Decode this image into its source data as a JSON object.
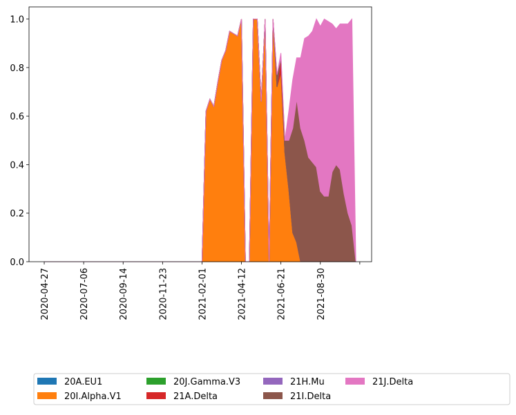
{
  "chart_data": {
    "type": "stacked_area",
    "x": [
      "2020-04-27",
      "2020-05-04",
      "2020-05-11",
      "2020-05-18",
      "2020-05-25",
      "2020-06-01",
      "2020-06-08",
      "2020-06-15",
      "2020-06-22",
      "2020-06-29",
      "2020-07-06",
      "2020-07-13",
      "2020-07-20",
      "2020-07-27",
      "2020-08-03",
      "2020-08-10",
      "2020-08-17",
      "2020-08-24",
      "2020-08-31",
      "2020-09-07",
      "2020-09-14",
      "2020-09-21",
      "2020-09-28",
      "2020-10-05",
      "2020-10-12",
      "2020-10-19",
      "2020-10-26",
      "2020-11-02",
      "2020-11-09",
      "2020-11-16",
      "2020-11-23",
      "2020-11-30",
      "2020-12-07",
      "2020-12-14",
      "2020-12-21",
      "2020-12-28",
      "2021-01-04",
      "2021-01-11",
      "2021-01-18",
      "2021-01-25",
      "2021-02-01",
      "2021-02-08",
      "2021-02-15",
      "2021-02-22",
      "2021-03-01",
      "2021-03-08",
      "2021-03-15",
      "2021-03-22",
      "2021-03-29",
      "2021-04-05",
      "2021-04-12",
      "2021-04-19",
      "2021-04-26",
      "2021-05-03",
      "2021-05-10",
      "2021-05-17",
      "2021-05-24",
      "2021-05-31",
      "2021-06-07",
      "2021-06-14",
      "2021-06-21",
      "2021-06-28",
      "2021-07-05",
      "2021-07-12",
      "2021-07-19",
      "2021-07-26",
      "2021-08-02",
      "2021-08-09",
      "2021-08-16",
      "2021-08-23",
      "2021-08-30",
      "2021-09-06",
      "2021-09-13",
      "2021-09-20",
      "2021-09-27",
      "2021-10-04",
      "2021-10-11",
      "2021-10-18",
      "2021-10-25",
      "2021-11-01"
    ],
    "series": [
      {
        "name": "20A.EU1",
        "color": "#1f77b4",
        "values": [
          0,
          0,
          0,
          0,
          0,
          0,
          0,
          0,
          0,
          0,
          0,
          0,
          0,
          0,
          0,
          0,
          0,
          0,
          0,
          0,
          0,
          0,
          0,
          0,
          0,
          0,
          0,
          0,
          0,
          0,
          0,
          0,
          0,
          0,
          0,
          0,
          0,
          0,
          0,
          0,
          0,
          0,
          0,
          0,
          0,
          0,
          0,
          0,
          0,
          0,
          0,
          0,
          0,
          0,
          0,
          0,
          0,
          0,
          0,
          0,
          0,
          0,
          0,
          0,
          0,
          0,
          0,
          0,
          0,
          0,
          0,
          0,
          0,
          0,
          0,
          0,
          0,
          0,
          0,
          0
        ]
      },
      {
        "name": "20I.Alpha.V1",
        "color": "#ff7f0e",
        "values": [
          0,
          0,
          0,
          0,
          0,
          0,
          0,
          0,
          0,
          0,
          0,
          0,
          0,
          0,
          0,
          0,
          0,
          0,
          0,
          0,
          0,
          0,
          0,
          0,
          0,
          0,
          0,
          0,
          0,
          0,
          0,
          0,
          0,
          0,
          0,
          0,
          0,
          0,
          0,
          0,
          0,
          0.62,
          0.67,
          0.64,
          0.74,
          0.83,
          0.87,
          0.95,
          0.94,
          0.93,
          1.0,
          0,
          0,
          1.0,
          1.0,
          0.66,
          1.0,
          0,
          1.0,
          0.72,
          0.78,
          0.45,
          0.3,
          0.12,
          0.08,
          0,
          0,
          0,
          0,
          0,
          0,
          0,
          0,
          0,
          0,
          0,
          0,
          0,
          0,
          0
        ]
      },
      {
        "name": "20J.Gamma.V3",
        "color": "#2ca02c",
        "values": [
          0,
          0,
          0,
          0,
          0,
          0,
          0,
          0,
          0,
          0,
          0,
          0,
          0,
          0,
          0,
          0,
          0,
          0,
          0,
          0,
          0,
          0,
          0,
          0,
          0,
          0,
          0,
          0,
          0,
          0,
          0,
          0,
          0,
          0,
          0,
          0,
          0,
          0,
          0,
          0,
          0,
          0,
          0,
          0,
          0,
          0,
          0,
          0,
          0,
          0,
          0,
          0,
          0,
          0,
          0,
          0,
          0,
          0,
          0,
          0,
          0,
          0,
          0,
          0,
          0,
          0,
          0,
          0,
          0,
          0,
          0,
          0,
          0,
          0,
          0,
          0,
          0,
          0,
          0,
          0
        ]
      },
      {
        "name": "21A.Delta",
        "color": "#d62728",
        "values": [
          0,
          0,
          0,
          0,
          0,
          0,
          0,
          0,
          0,
          0,
          0,
          0,
          0,
          0,
          0,
          0,
          0,
          0,
          0,
          0,
          0,
          0,
          0,
          0,
          0,
          0,
          0,
          0,
          0,
          0,
          0,
          0,
          0,
          0,
          0,
          0,
          0,
          0,
          0,
          0,
          0,
          0,
          0,
          0,
          0,
          0,
          0,
          0,
          0,
          0,
          0,
          0,
          0,
          0,
          0,
          0,
          0,
          0,
          0,
          0,
          0.06,
          0,
          0,
          0,
          0,
          0,
          0,
          0,
          0,
          0,
          0,
          0,
          0,
          0,
          0,
          0,
          0,
          0,
          0,
          0
        ]
      },
      {
        "name": "21H.Mu",
        "color": "#9467bd",
        "values": [
          0,
          0,
          0,
          0,
          0,
          0,
          0,
          0,
          0,
          0,
          0,
          0,
          0,
          0,
          0,
          0,
          0,
          0,
          0,
          0,
          0,
          0,
          0,
          0,
          0,
          0,
          0,
          0,
          0,
          0,
          0,
          0,
          0,
          0,
          0,
          0,
          0,
          0,
          0,
          0,
          0,
          0,
          0,
          0,
          0,
          0,
          0,
          0,
          0,
          0,
          0,
          0,
          0,
          0,
          0,
          0,
          0,
          0,
          0,
          0,
          0,
          0,
          0,
          0,
          0,
          0,
          0,
          0,
          0,
          0,
          0,
          0,
          0,
          0,
          0,
          0,
          0,
          0,
          0,
          0
        ]
      },
      {
        "name": "21I.Delta",
        "color": "#8c564b",
        "values": [
          0,
          0,
          0,
          0,
          0,
          0,
          0,
          0,
          0,
          0,
          0,
          0,
          0,
          0,
          0,
          0,
          0,
          0,
          0,
          0,
          0,
          0,
          0,
          0,
          0,
          0,
          0,
          0,
          0,
          0,
          0,
          0,
          0,
          0,
          0,
          0,
          0,
          0,
          0,
          0,
          0,
          0,
          0,
          0,
          0,
          0,
          0,
          0,
          0,
          0,
          0,
          0,
          0,
          0,
          0,
          0,
          0,
          0,
          0,
          0.05,
          0,
          0.05,
          0.2,
          0.43,
          0.59,
          0.55,
          0.5,
          0.43,
          0.41,
          0.39,
          0.29,
          0.27,
          0.27,
          0.37,
          0.4,
          0.38,
          0.28,
          0.2,
          0.15,
          0
        ]
      },
      {
        "name": "21J.Delta",
        "color": "#e377c2",
        "values": [
          0,
          0,
          0,
          0,
          0,
          0,
          0,
          0,
          0,
          0,
          0,
          0,
          0,
          0,
          0,
          0,
          0,
          0,
          0,
          0,
          0,
          0,
          0,
          0,
          0,
          0,
          0,
          0,
          0,
          0,
          0,
          0,
          0,
          0,
          0,
          0,
          0,
          0,
          0,
          0,
          0,
          0,
          0,
          0,
          0,
          0,
          0,
          0,
          0,
          0,
          0,
          0,
          0,
          0,
          0,
          0,
          0,
          0,
          0,
          0,
          0.02,
          0,
          0.12,
          0.2,
          0.17,
          0.29,
          0.42,
          0.5,
          0.54,
          0.61,
          0.68,
          0.73,
          0.72,
          0.61,
          0.56,
          0.6,
          0.7,
          0.78,
          0.85,
          0
        ]
      }
    ],
    "xlim": [
      "2020-03-31",
      "2021-11-29"
    ],
    "xticks": [
      "2020-04-27",
      "2020-07-06",
      "2020-09-14",
      "2020-11-23",
      "2021-02-01",
      "2021-04-12",
      "2021-06-21",
      "2021-08-30",
      {
        "value": "2021-11-08",
        "label": null
      }
    ],
    "ylim": [
      0,
      1.05
    ],
    "yticks": [
      {
        "value": 0,
        "label": "0.0"
      },
      0.2,
      0.4,
      0.6,
      0.8,
      {
        "value": 1,
        "label": "1.0"
      }
    ],
    "legend": "below",
    "legend_columns": 5
  }
}
